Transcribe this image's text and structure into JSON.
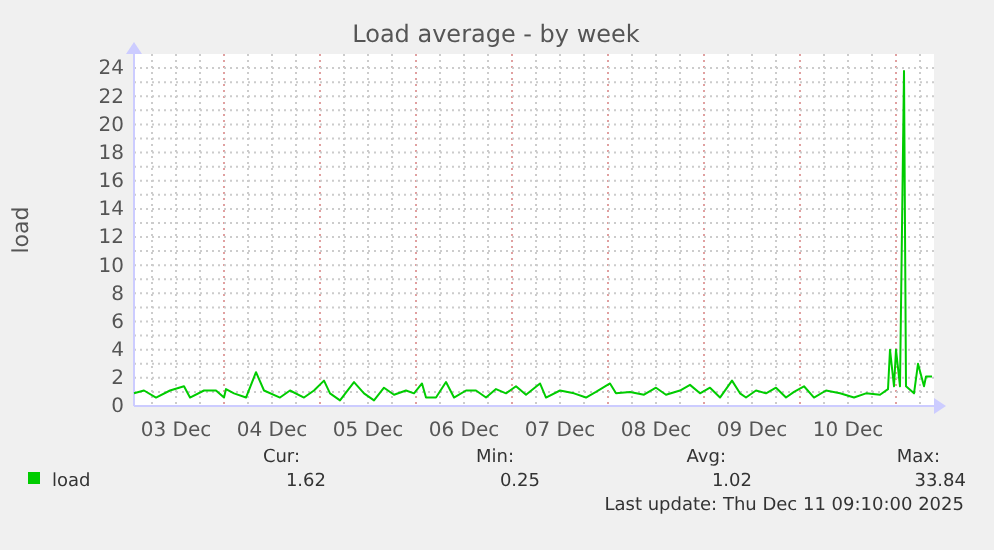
{
  "chart_data": {
    "type": "line",
    "title": "Load average - by week",
    "ylabel": "load",
    "x": [
      "2025-12-03T01:30",
      "2025-12-03T04:00",
      "2025-12-03T07:00",
      "2025-12-03T10:30",
      "2025-12-03T14:00",
      "2025-12-03T15:30",
      "2025-12-03T19:00",
      "2025-12-03T22:00",
      "2025-12-04T00:00",
      "2025-12-04T00:30",
      "2025-12-04T02:30",
      "2025-12-04T05:30",
      "2025-12-04T08:00",
      "2025-12-04T10:00",
      "2025-12-04T14:00",
      "2025-12-04T16:30",
      "2025-12-04T20:00",
      "2025-12-04T22:30",
      "2025-12-05T01:00",
      "2025-12-05T02:30",
      "2025-12-05T05:00",
      "2025-12-05T08:30",
      "2025-12-05T11:00",
      "2025-12-05T13:30",
      "2025-12-05T16:00",
      "2025-12-05T18:30",
      "2025-12-05T21:30",
      "2025-12-05T23:30",
      "2025-12-06T01:30",
      "2025-12-06T02:30",
      "2025-12-06T05:00",
      "2025-12-06T07:30",
      "2025-12-06T09:30",
      "2025-12-06T12:30",
      "2025-12-06T15:00",
      "2025-12-06T17:30",
      "2025-12-06T20:00",
      "2025-12-06T22:30",
      "2025-12-07T01:00",
      "2025-12-07T03:30",
      "2025-12-07T07:00",
      "2025-12-07T08:30",
      "2025-12-07T12:00",
      "2025-12-07T15:30",
      "2025-12-07T18:30",
      "2025-12-07T21:00",
      "2025-12-08T00:30",
      "2025-12-08T02:00",
      "2025-12-08T05:30",
      "2025-12-08T09:00",
      "2025-12-08T12:00",
      "2025-12-08T14:30",
      "2025-12-08T18:00",
      "2025-12-08T20:30",
      "2025-12-08T23:00",
      "2025-12-09T01:30",
      "2025-12-09T04:00",
      "2025-12-09T07:00",
      "2025-12-09T09:00",
      "2025-12-09T10:30",
      "2025-12-09T13:00",
      "2025-12-09T15:30",
      "2025-12-09T18:00",
      "2025-12-09T20:30",
      "2025-12-09T22:30",
      "2025-12-10T01:00",
      "2025-12-10T03:30",
      "2025-12-10T06:30",
      "2025-12-10T10:00",
      "2025-12-10T13:30",
      "2025-12-10T16:30",
      "2025-12-10T20:00",
      "2025-12-10T22:00",
      "2025-12-10T22:30",
      "2025-12-10T23:30",
      "2025-12-11T00:00",
      "2025-12-11T01:00",
      "2025-12-11T02:00",
      "2025-12-11T02:30",
      "2025-12-11T04:30",
      "2025-12-11T05:30",
      "2025-12-11T07:00",
      "2025-12-11T07:30",
      "2025-12-11T09:00"
    ],
    "series": [
      {
        "name": "load",
        "color": "#00cc00",
        "values": [
          0.9,
          1.1,
          0.6,
          1.1,
          1.4,
          0.6,
          1.1,
          1.1,
          0.6,
          1.2,
          0.9,
          0.6,
          2.4,
          1.1,
          0.6,
          1.1,
          0.6,
          1.1,
          1.8,
          0.9,
          0.4,
          1.7,
          0.9,
          0.4,
          1.3,
          0.8,
          1.1,
          0.9,
          1.6,
          0.6,
          0.6,
          1.7,
          0.6,
          1.1,
          1.1,
          0.6,
          1.2,
          0.9,
          1.4,
          0.8,
          1.6,
          0.6,
          1.1,
          0.9,
          0.6,
          1.0,
          1.6,
          0.9,
          1.0,
          0.8,
          1.3,
          0.8,
          1.1,
          1.5,
          0.9,
          1.3,
          0.6,
          1.8,
          0.9,
          0.6,
          1.1,
          0.9,
          1.3,
          0.6,
          1.0,
          1.4,
          0.6,
          1.1,
          0.9,
          0.6,
          0.9,
          0.8,
          1.2,
          4.0,
          1.4,
          4.0,
          1.4,
          23.8,
          1.4,
          0.9,
          3.0,
          1.4,
          2.1,
          2.1
        ]
      }
    ],
    "xlim": [
      "2025-12-03T01:30",
      "2025-12-11T09:30"
    ],
    "xticks": [
      {
        "value": "2025-12-03T12:00",
        "label": "03 Dec"
      },
      {
        "value": "2025-12-04T00:00",
        "label": null
      },
      {
        "value": "2025-12-04T12:00",
        "label": "04 Dec"
      },
      {
        "value": "2025-12-05T00:00",
        "label": null
      },
      {
        "value": "2025-12-05T12:00",
        "label": "05 Dec"
      },
      {
        "value": "2025-12-06T00:00",
        "label": null
      },
      {
        "value": "2025-12-06T12:00",
        "label": "06 Dec"
      },
      {
        "value": "2025-12-07T00:00",
        "label": null
      },
      {
        "value": "2025-12-07T12:00",
        "label": "07 Dec"
      },
      {
        "value": "2025-12-08T00:00",
        "label": null
      },
      {
        "value": "2025-12-08T12:00",
        "label": "08 Dec"
      },
      {
        "value": "2025-12-09T00:00",
        "label": null
      },
      {
        "value": "2025-12-09T12:00",
        "label": "09 Dec"
      },
      {
        "value": "2025-12-10T00:00",
        "label": null
      },
      {
        "value": "2025-12-10T12:00",
        "label": "10 Dec"
      },
      {
        "value": "2025-12-11T00:00",
        "label": null
      }
    ],
    "ylim": [
      0,
      25
    ],
    "yticks": [
      0,
      2,
      4,
      6,
      8,
      10,
      12,
      14,
      16,
      18,
      20,
      22,
      24
    ],
    "grid": true,
    "legend": "bottom",
    "marker": "none",
    "line_style": "solid",
    "annotations": [
      "Cur:",
      "1.62",
      "Min:",
      "0.25",
      "Avg:",
      "1.02",
      "Max:",
      "33.84",
      "Last update: Thu Dec 11 09:10:00 2025"
    ]
  }
}
